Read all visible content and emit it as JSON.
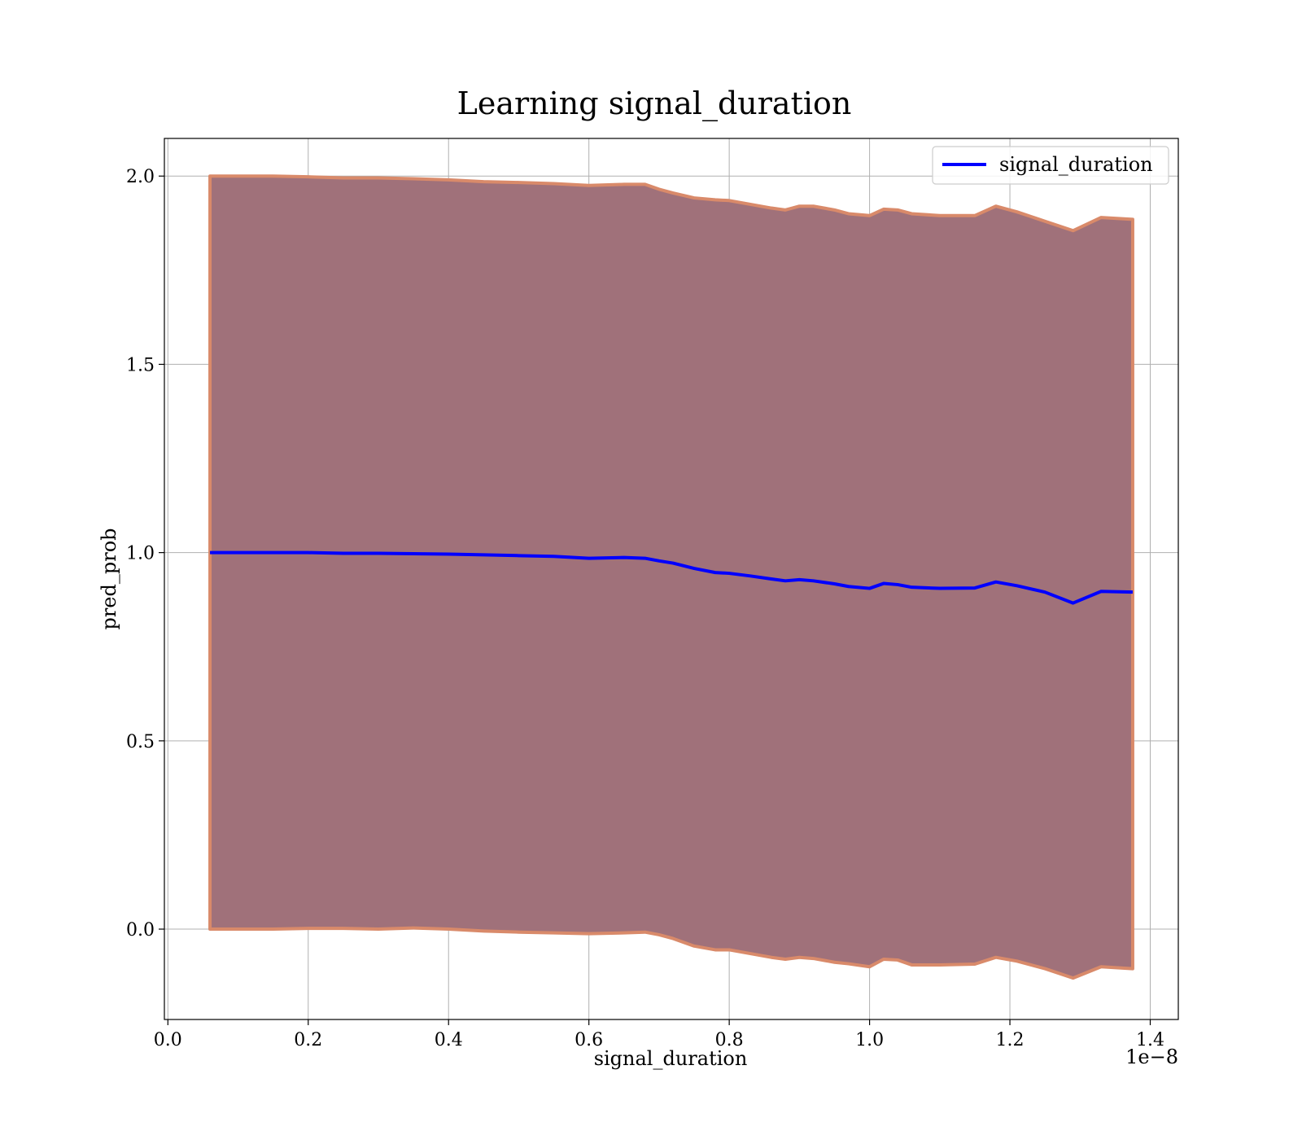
{
  "chart_data": {
    "type": "line",
    "title": "Learning signal_duration",
    "xlabel": "signal_duration",
    "ylabel": "pred_prob",
    "x_offset_label": "1e−8",
    "xlim": [
      -0.005,
      1.44
    ],
    "ylim": [
      -0.24,
      2.1
    ],
    "x_ticks": [
      0.0,
      0.2,
      0.4,
      0.6,
      0.8,
      1.0,
      1.2,
      1.4
    ],
    "x_tick_labels": [
      "0.0",
      "0.2",
      "0.4",
      "0.6",
      "0.8",
      "1.0",
      "1.2",
      "1.4"
    ],
    "y_ticks": [
      0.0,
      0.5,
      1.0,
      1.5,
      2.0
    ],
    "y_tick_labels": [
      "0.0",
      "0.5",
      "1.0",
      "1.5",
      "2.0"
    ],
    "grid": true,
    "legend_position": "top-right",
    "colors": {
      "line": "#0000ff",
      "band_fill": "#a0717a",
      "band_edge": "#d98a6a",
      "grid": "#b0b0b0"
    },
    "series": [
      {
        "name": "signal_duration",
        "x": [
          0.06,
          0.1,
          0.15,
          0.2,
          0.25,
          0.3,
          0.35,
          0.4,
          0.45,
          0.5,
          0.55,
          0.6,
          0.65,
          0.68,
          0.7,
          0.72,
          0.75,
          0.78,
          0.8,
          0.83,
          0.86,
          0.88,
          0.9,
          0.92,
          0.95,
          0.97,
          1.0,
          1.02,
          1.04,
          1.06,
          1.1,
          1.15,
          1.18,
          1.21,
          1.25,
          1.29,
          1.33,
          1.375
        ],
        "y": [
          1.0,
          1.0,
          1.0,
          1.0,
          0.998,
          0.998,
          0.997,
          0.996,
          0.994,
          0.992,
          0.99,
          0.985,
          0.987,
          0.985,
          0.978,
          0.972,
          0.958,
          0.947,
          0.945,
          0.938,
          0.93,
          0.925,
          0.928,
          0.925,
          0.917,
          0.91,
          0.905,
          0.918,
          0.915,
          0.908,
          0.905,
          0.906,
          0.922,
          0.912,
          0.895,
          0.866,
          0.897,
          0.895
        ]
      }
    ],
    "band": {
      "x": [
        0.06,
        0.1,
        0.15,
        0.2,
        0.25,
        0.3,
        0.35,
        0.4,
        0.45,
        0.5,
        0.55,
        0.6,
        0.65,
        0.68,
        0.7,
        0.72,
        0.75,
        0.78,
        0.8,
        0.83,
        0.86,
        0.88,
        0.9,
        0.92,
        0.95,
        0.97,
        1.0,
        1.02,
        1.04,
        1.06,
        1.1,
        1.15,
        1.18,
        1.21,
        1.25,
        1.29,
        1.33,
        1.375
      ],
      "upper": [
        2.0,
        2.0,
        2.0,
        1.998,
        1.995,
        1.995,
        1.993,
        1.99,
        1.985,
        1.983,
        1.98,
        1.975,
        1.978,
        1.978,
        1.965,
        1.955,
        1.942,
        1.937,
        1.935,
        1.925,
        1.915,
        1.91,
        1.92,
        1.92,
        1.91,
        1.9,
        1.895,
        1.912,
        1.91,
        1.9,
        1.895,
        1.895,
        1.92,
        1.905,
        1.88,
        1.855,
        1.89,
        1.885
      ],
      "lower": [
        0.0,
        0.0,
        0.0,
        0.002,
        0.002,
        0.0,
        0.003,
        0.0,
        -0.005,
        -0.008,
        -0.01,
        -0.012,
        -0.01,
        -0.008,
        -0.015,
        -0.025,
        -0.045,
        -0.055,
        -0.055,
        -0.065,
        -0.075,
        -0.08,
        -0.075,
        -0.078,
        -0.088,
        -0.092,
        -0.1,
        -0.08,
        -0.082,
        -0.095,
        -0.095,
        -0.093,
        -0.075,
        -0.085,
        -0.105,
        -0.13,
        -0.1,
        -0.105
      ]
    }
  }
}
